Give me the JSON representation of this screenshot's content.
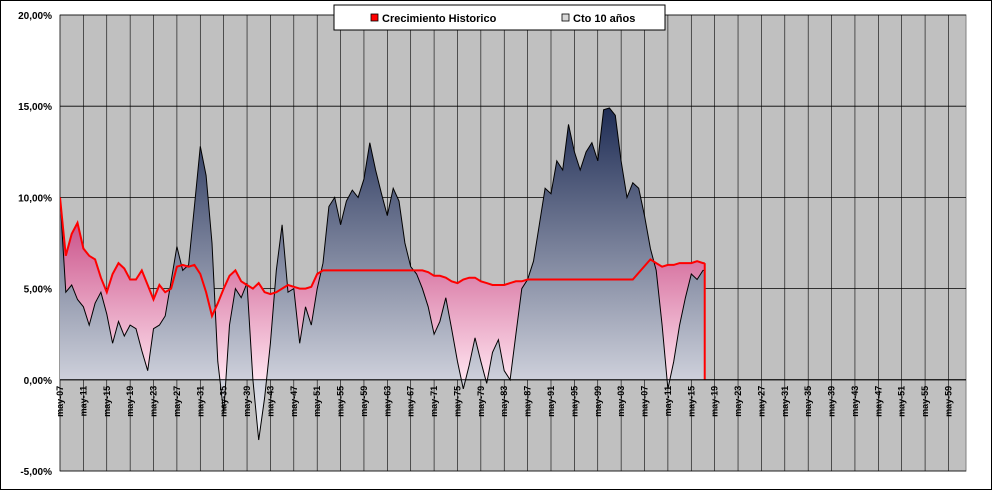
{
  "chart_data": {
    "type": "area",
    "title": "",
    "xlabel": "",
    "ylabel": "",
    "ylim": [
      -5,
      20
    ],
    "y_ticks": [
      "20,00%",
      "15,00%",
      "10,00%",
      "5,00%",
      "0,00%",
      "-5,00%"
    ],
    "y_tick_values": [
      20,
      15,
      10,
      5,
      0,
      -5
    ],
    "x_tick_labels": [
      "may-07",
      "may-11",
      "may-15",
      "may-19",
      "may-23",
      "may-27",
      "may-31",
      "may-35",
      "may-39",
      "may-43",
      "may-47",
      "may-51",
      "may-55",
      "may-59",
      "may-63",
      "may-67",
      "may-71",
      "may-75",
      "may-79",
      "may-83",
      "may-87",
      "may-91",
      "may-95",
      "may-99",
      "may-03",
      "may-07",
      "may-11",
      "may-15",
      "may-19",
      "may-23",
      "may-27",
      "may-31",
      "may-35",
      "may-39",
      "may-43",
      "may-47",
      "may-51",
      "may-55",
      "may-59"
    ],
    "x_start_year": 1907,
    "x_end_year": 2062,
    "grid": true,
    "legend_position": "top-center",
    "plot_background": "#c0c0c0",
    "series": [
      {
        "name": "Crecimiento Historico",
        "color": "#ff0000",
        "fill_color": "#f26fa8",
        "x": [
          1907,
          1908,
          1909,
          1910,
          1911,
          1912,
          1913,
          1914,
          1915,
          1916,
          1917,
          1918,
          1919,
          1920,
          1921,
          1922,
          1923,
          1924,
          1925,
          1926,
          1927,
          1928,
          1929,
          1930,
          1931,
          1932,
          1933,
          1934,
          1935,
          1936,
          1937,
          1938,
          1939,
          1940,
          1941,
          1942,
          1943,
          1944,
          1945,
          1946,
          1947,
          1948,
          1949,
          1950,
          1951,
          1952,
          1955,
          1960,
          1965,
          1968,
          1969,
          1970,
          1971,
          1972,
          1973,
          1974,
          1975,
          1976,
          1977,
          1978,
          1979,
          1980,
          1981,
          1982,
          1983,
          1984,
          1985,
          1986,
          1987,
          1990,
          1995,
          2000,
          2005,
          2008,
          2009,
          2010,
          2011,
          2012,
          2013,
          2014,
          2015,
          2016,
          2017,
          2017.3
        ],
        "y": [
          10.0,
          6.8,
          8.0,
          8.6,
          7.2,
          6.8,
          6.6,
          5.6,
          4.8,
          5.8,
          6.4,
          6.1,
          5.5,
          5.5,
          6.0,
          5.2,
          4.4,
          5.2,
          4.8,
          5.0,
          6.2,
          6.3,
          6.2,
          6.3,
          5.8,
          4.8,
          3.5,
          4.2,
          5.0,
          5.7,
          6.0,
          5.4,
          5.2,
          5.0,
          5.3,
          4.8,
          4.7,
          4.8,
          5.0,
          5.2,
          5.1,
          5.0,
          5.0,
          5.1,
          5.8,
          6.0,
          6.0,
          6.0,
          6.0,
          6.0,
          6.0,
          5.9,
          5.7,
          5.7,
          5.6,
          5.4,
          5.3,
          5.5,
          5.6,
          5.6,
          5.4,
          5.3,
          5.2,
          5.2,
          5.2,
          5.3,
          5.4,
          5.4,
          5.5,
          5.5,
          5.5,
          5.5,
          5.5,
          6.6,
          6.4,
          6.2,
          6.3,
          6.3,
          6.4,
          6.4,
          6.4,
          6.5,
          6.4,
          6.4
        ]
      },
      {
        "name": "Cto 10 años",
        "color": "#000000",
        "fill_top_color": "#1f2d55",
        "fill_bottom_color": "#f4f4f8",
        "x": [
          1907,
          1908,
          1909,
          1910,
          1911,
          1912,
          1913,
          1914,
          1915,
          1916,
          1917,
          1918,
          1919,
          1920,
          1921,
          1922,
          1923,
          1924,
          1925,
          1926,
          1927,
          1928,
          1929,
          1930,
          1931,
          1932,
          1933,
          1934,
          1935,
          1936,
          1937,
          1938,
          1939,
          1940,
          1941,
          1942,
          1943,
          1944,
          1945,
          1946,
          1947,
          1948,
          1949,
          1950,
          1951,
          1952,
          1953,
          1954,
          1955,
          1956,
          1957,
          1958,
          1959,
          1960,
          1961,
          1962,
          1963,
          1964,
          1965,
          1966,
          1967,
          1968,
          1969,
          1970,
          1971,
          1972,
          1973,
          1974,
          1975,
          1976,
          1977,
          1978,
          1979,
          1980,
          1981,
          1982,
          1983,
          1984,
          1985,
          1986,
          1987,
          1988,
          1989,
          1990,
          1991,
          1992,
          1993,
          1994,
          1995,
          1996,
          1997,
          1998,
          1999,
          2000,
          2001,
          2002,
          2003,
          2004,
          2005,
          2006,
          2007,
          2008,
          2009,
          2010,
          2011,
          2012,
          2013,
          2014,
          2015,
          2016,
          2017,
          2017.3
        ],
        "y": [
          10.0,
          4.8,
          5.2,
          4.4,
          4.0,
          3.0,
          4.2,
          4.8,
          3.6,
          2.0,
          3.2,
          2.4,
          3.0,
          2.8,
          1.6,
          0.5,
          2.8,
          3.0,
          3.5,
          5.4,
          7.3,
          6.0,
          6.3,
          9.5,
          12.8,
          11.2,
          7.5,
          1.0,
          -1.8,
          3.0,
          5.0,
          4.5,
          5.3,
          0.0,
          -3.3,
          -1.0,
          2.0,
          6.0,
          8.5,
          4.8,
          5.0,
          2.0,
          4.0,
          3.0,
          5.0,
          6.4,
          9.5,
          10.0,
          8.5,
          9.8,
          10.4,
          10.0,
          11.0,
          13.0,
          11.5,
          10.2,
          9.0,
          10.5,
          9.8,
          7.5,
          6.2,
          5.8,
          5.0,
          4.0,
          2.5,
          3.2,
          4.5,
          2.8,
          1.0,
          -0.5,
          0.8,
          2.3,
          1.0,
          -0.2,
          1.5,
          2.2,
          0.5,
          0.0,
          2.5,
          5.0,
          5.5,
          6.5,
          8.5,
          10.5,
          10.2,
          12.0,
          11.5,
          14.0,
          12.5,
          11.5,
          12.5,
          13.0,
          12.0,
          14.8,
          14.9,
          14.5,
          12.0,
          10.0,
          10.8,
          10.5,
          9.0,
          7.2,
          6.0,
          3.0,
          -0.5,
          1.0,
          3.0,
          4.5,
          5.8,
          5.5,
          6.0,
          6.0
        ]
      }
    ]
  }
}
